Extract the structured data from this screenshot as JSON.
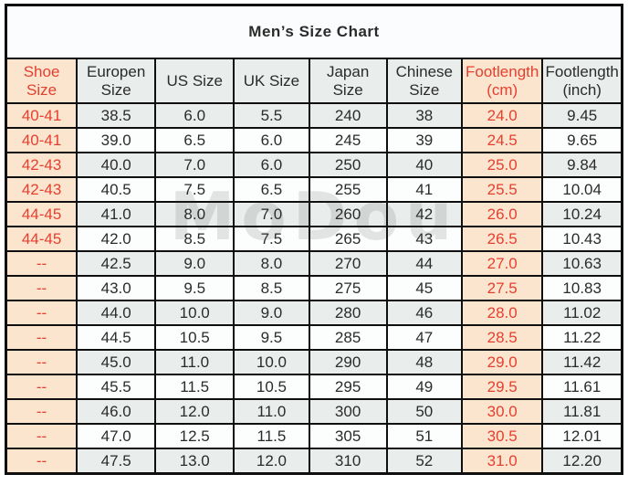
{
  "title": "Men’s Size Chart",
  "watermark": "MoDou",
  "colors": {
    "accent_bg": "#fce5cf",
    "accent_text": "#e5402f",
    "stripe_bg": "#e9edec",
    "plain_bg": "#fcfdfd",
    "border": "#0f0f0f",
    "text": "#2b2b2b"
  },
  "table": {
    "header_display": [
      "Shoe Size",
      "Europen\nSize",
      "US Size",
      "UK Size",
      "Japan\nSize",
      "Chinese\nSize",
      "Footlength\n(cm)",
      "Footlength\n(inch)"
    ],
    "accent_columns": [
      0,
      6
    ]
  },
  "chart_data": {
    "type": "table",
    "title": "Men’s Size Chart",
    "columns": [
      "Shoe Size",
      "Europen Size",
      "US Size",
      "UK Size",
      "Japan Size",
      "Chinese Size",
      "Footlength (cm)",
      "Footlength (inch)"
    ],
    "rows": [
      [
        "40-41",
        "38.5",
        "6.0",
        "5.5",
        "240",
        "38",
        "24.0",
        "9.45"
      ],
      [
        "40-41",
        "39.0",
        "6.5",
        "6.0",
        "245",
        "39",
        "24.5",
        "9.65"
      ],
      [
        "42-43",
        "40.0",
        "7.0",
        "6.0",
        "250",
        "40",
        "25.0",
        "9.84"
      ],
      [
        "42-43",
        "40.5",
        "7.5",
        "6.5",
        "255",
        "41",
        "25.5",
        "10.04"
      ],
      [
        "44-45",
        "41.0",
        "8.0",
        "7.0",
        "260",
        "42",
        "26.0",
        "10.24"
      ],
      [
        "44-45",
        "42.0",
        "8.5",
        "7.5",
        "265",
        "43",
        "26.5",
        "10.43"
      ],
      [
        "--",
        "42.5",
        "9.0",
        "8.0",
        "270",
        "44",
        "27.0",
        "10.63"
      ],
      [
        "--",
        "43.0",
        "9.5",
        "8.5",
        "275",
        "45",
        "27.5",
        "10.83"
      ],
      [
        "--",
        "44.0",
        "10.0",
        "9.0",
        "280",
        "46",
        "28.0",
        "11.02"
      ],
      [
        "--",
        "44.5",
        "10.5",
        "9.5",
        "285",
        "47",
        "28.5",
        "11.22"
      ],
      [
        "--",
        "45.0",
        "11.0",
        "10.0",
        "290",
        "48",
        "29.0",
        "11.42"
      ],
      [
        "--",
        "45.5",
        "11.5",
        "10.5",
        "295",
        "49",
        "29.5",
        "11.61"
      ],
      [
        "--",
        "46.0",
        "12.0",
        "11.0",
        "300",
        "50",
        "30.0",
        "11.81"
      ],
      [
        "--",
        "47.0",
        "12.5",
        "11.5",
        "305",
        "51",
        "30.5",
        "12.01"
      ],
      [
        "--",
        "47.5",
        "13.0",
        "12.0",
        "310",
        "52",
        "31.0",
        "12.20"
      ]
    ]
  }
}
